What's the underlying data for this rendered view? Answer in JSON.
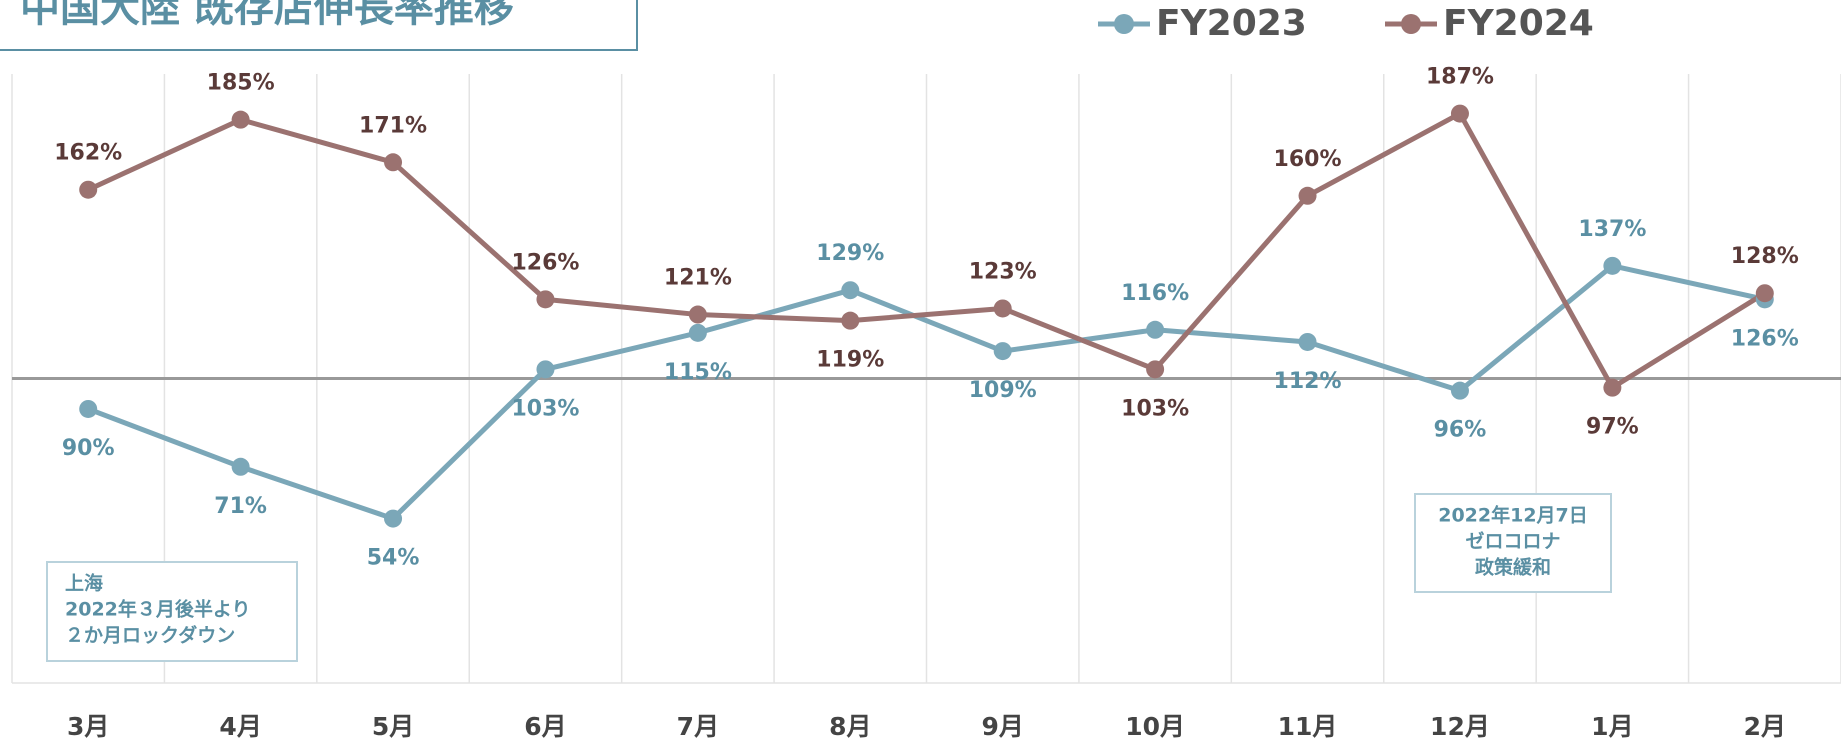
{
  "chart_data": {
    "type": "line",
    "title": "中国大陸 既存店伸長率推移",
    "categories": [
      "3月",
      "4月",
      "5月",
      "6月",
      "7月",
      "8月",
      "9月",
      "10月",
      "11月",
      "12月",
      "1月",
      "2月"
    ],
    "series": [
      {
        "name": "FY2023",
        "color": "#7ba7b8",
        "label_color": "#5a8fa3",
        "values": [
          90,
          71,
          54,
          103,
          115,
          129,
          109,
          116,
          112,
          96,
          137,
          126
        ],
        "value_labels": [
          "90%",
          "71%",
          "54%",
          "103%",
          "115%",
          "129%",
          "109%",
          "116%",
          "112%",
          "96%",
          "137%",
          "126%"
        ]
      },
      {
        "name": "FY2024",
        "color": "#9b7270",
        "label_color": "#5a3a38",
        "values": [
          162,
          185,
          171,
          126,
          121,
          119,
          123,
          103,
          160,
          187,
          97,
          128
        ],
        "value_labels": [
          "162%",
          "185%",
          "171%",
          "126%",
          "121%",
          "119%",
          "123%",
          "103%",
          "160%",
          "187%",
          "97%",
          "128%"
        ]
      }
    ],
    "ylim": [
      0,
      200
    ],
    "reference_line": 100,
    "grid": true,
    "legend": "top-right",
    "annotations": [
      {
        "lines": [
          "上海",
          "2022年３月後半より",
          "２か月ロックダウン"
        ]
      },
      {
        "lines": [
          "2022年12月7日",
          "ゼロコロナ",
          "政策緩和"
        ]
      }
    ]
  }
}
